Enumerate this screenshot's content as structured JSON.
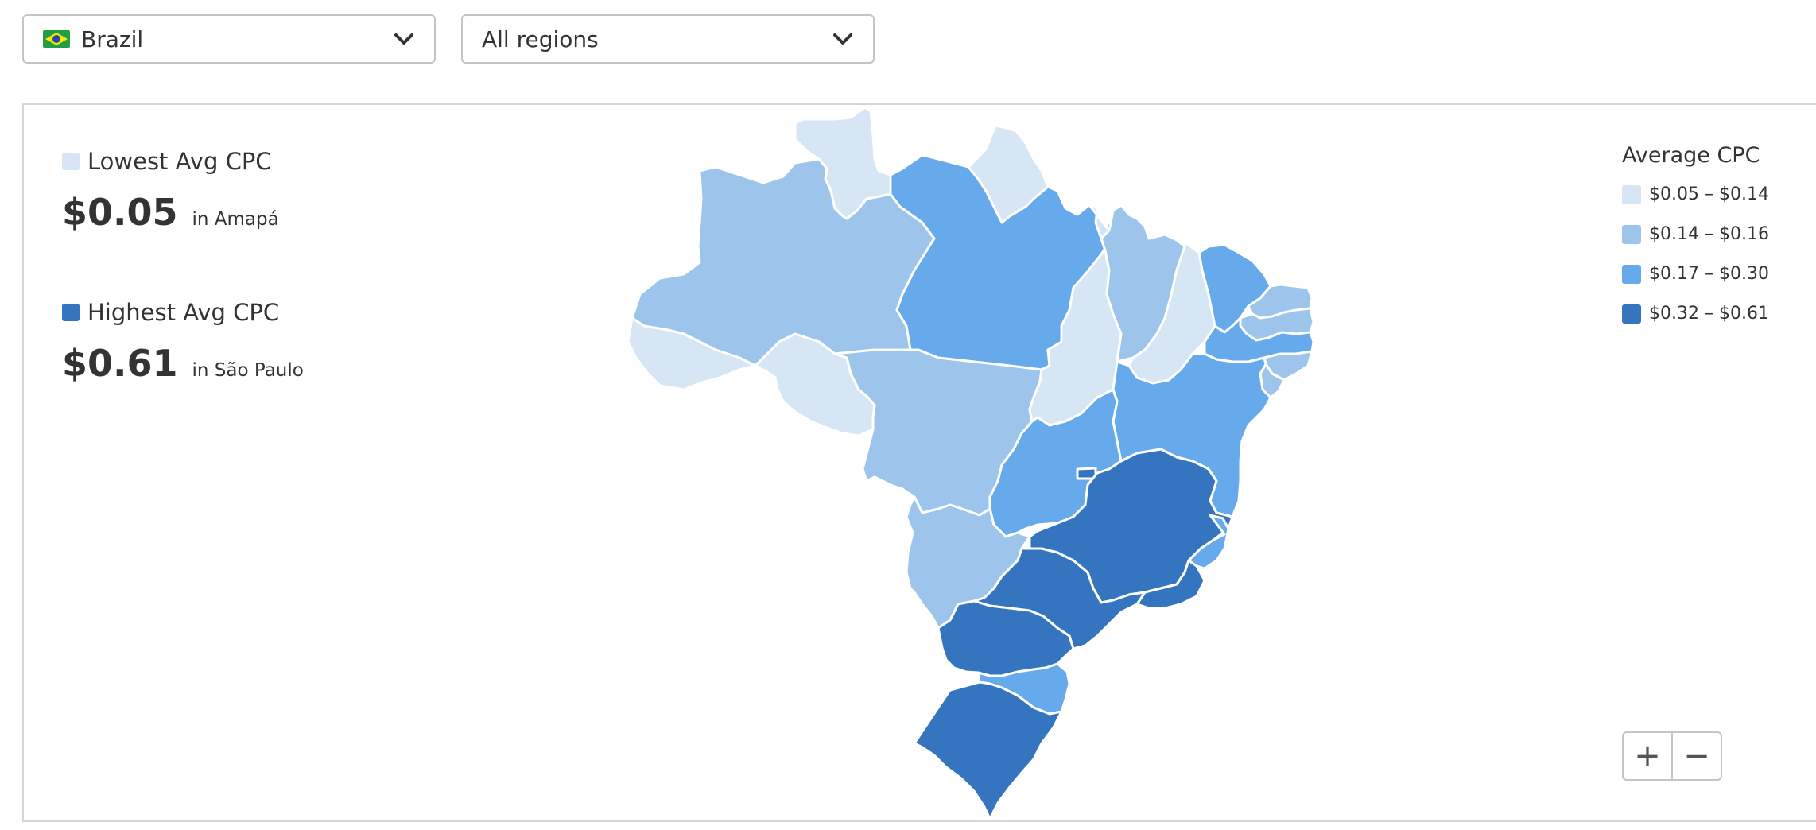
{
  "filters": {
    "country": {
      "value": "Brazil",
      "icon": "brazil-flag-icon"
    },
    "region": {
      "value": "All regions"
    }
  },
  "summary": {
    "lowest": {
      "label": "Lowest Avg CPC",
      "value": "$0.05",
      "location": "in Amapá",
      "color": "#d6e6f5"
    },
    "highest": {
      "label": "Highest Avg CPC",
      "value": "$0.61",
      "location": "in São Paulo",
      "color": "#3575bf"
    }
  },
  "legend": {
    "title": "Average CPC",
    "items": [
      {
        "label": "$0.05 – $0.14",
        "color": "#d6e6f5"
      },
      {
        "label": "$0.14 – $0.16",
        "color": "#9dc5ec"
      },
      {
        "label": "$0.17 – $0.30",
        "color": "#66aaeb"
      },
      {
        "label": "$0.32 – $0.61",
        "color": "#3575bf"
      }
    ]
  },
  "zoom": {
    "in": "+",
    "out": "−"
  },
  "map": {
    "states": [
      {
        "name": "Roraima",
        "bin": 0
      },
      {
        "name": "Amapá",
        "bin": 0
      },
      {
        "name": "Amazonas",
        "bin": 1
      },
      {
        "name": "Pará",
        "bin": 2
      },
      {
        "name": "Acre",
        "bin": 0
      },
      {
        "name": "Rondônia",
        "bin": 0
      },
      {
        "name": "Mato Grosso",
        "bin": 1
      },
      {
        "name": "Tocantins",
        "bin": 0
      },
      {
        "name": "Maranhão",
        "bin": 1
      },
      {
        "name": "Piauí",
        "bin": 0
      },
      {
        "name": "Ceará",
        "bin": 2
      },
      {
        "name": "Rio Grande do Norte",
        "bin": 1
      },
      {
        "name": "Paraíba",
        "bin": 1
      },
      {
        "name": "Pernambuco",
        "bin": 2
      },
      {
        "name": "Alagoas",
        "bin": 1
      },
      {
        "name": "Sergipe",
        "bin": 1
      },
      {
        "name": "Bahia",
        "bin": 2
      },
      {
        "name": "Goiás",
        "bin": 2
      },
      {
        "name": "Distrito Federal",
        "bin": 3
      },
      {
        "name": "Mato Grosso do Sul",
        "bin": 1
      },
      {
        "name": "Minas Gerais",
        "bin": 3
      },
      {
        "name": "Espírito Santo",
        "bin": 2
      },
      {
        "name": "Rio de Janeiro",
        "bin": 3
      },
      {
        "name": "São Paulo",
        "bin": 3
      },
      {
        "name": "Paraná",
        "bin": 3
      },
      {
        "name": "Santa Catarina",
        "bin": 2
      },
      {
        "name": "Rio Grande do Sul",
        "bin": 3
      }
    ]
  }
}
